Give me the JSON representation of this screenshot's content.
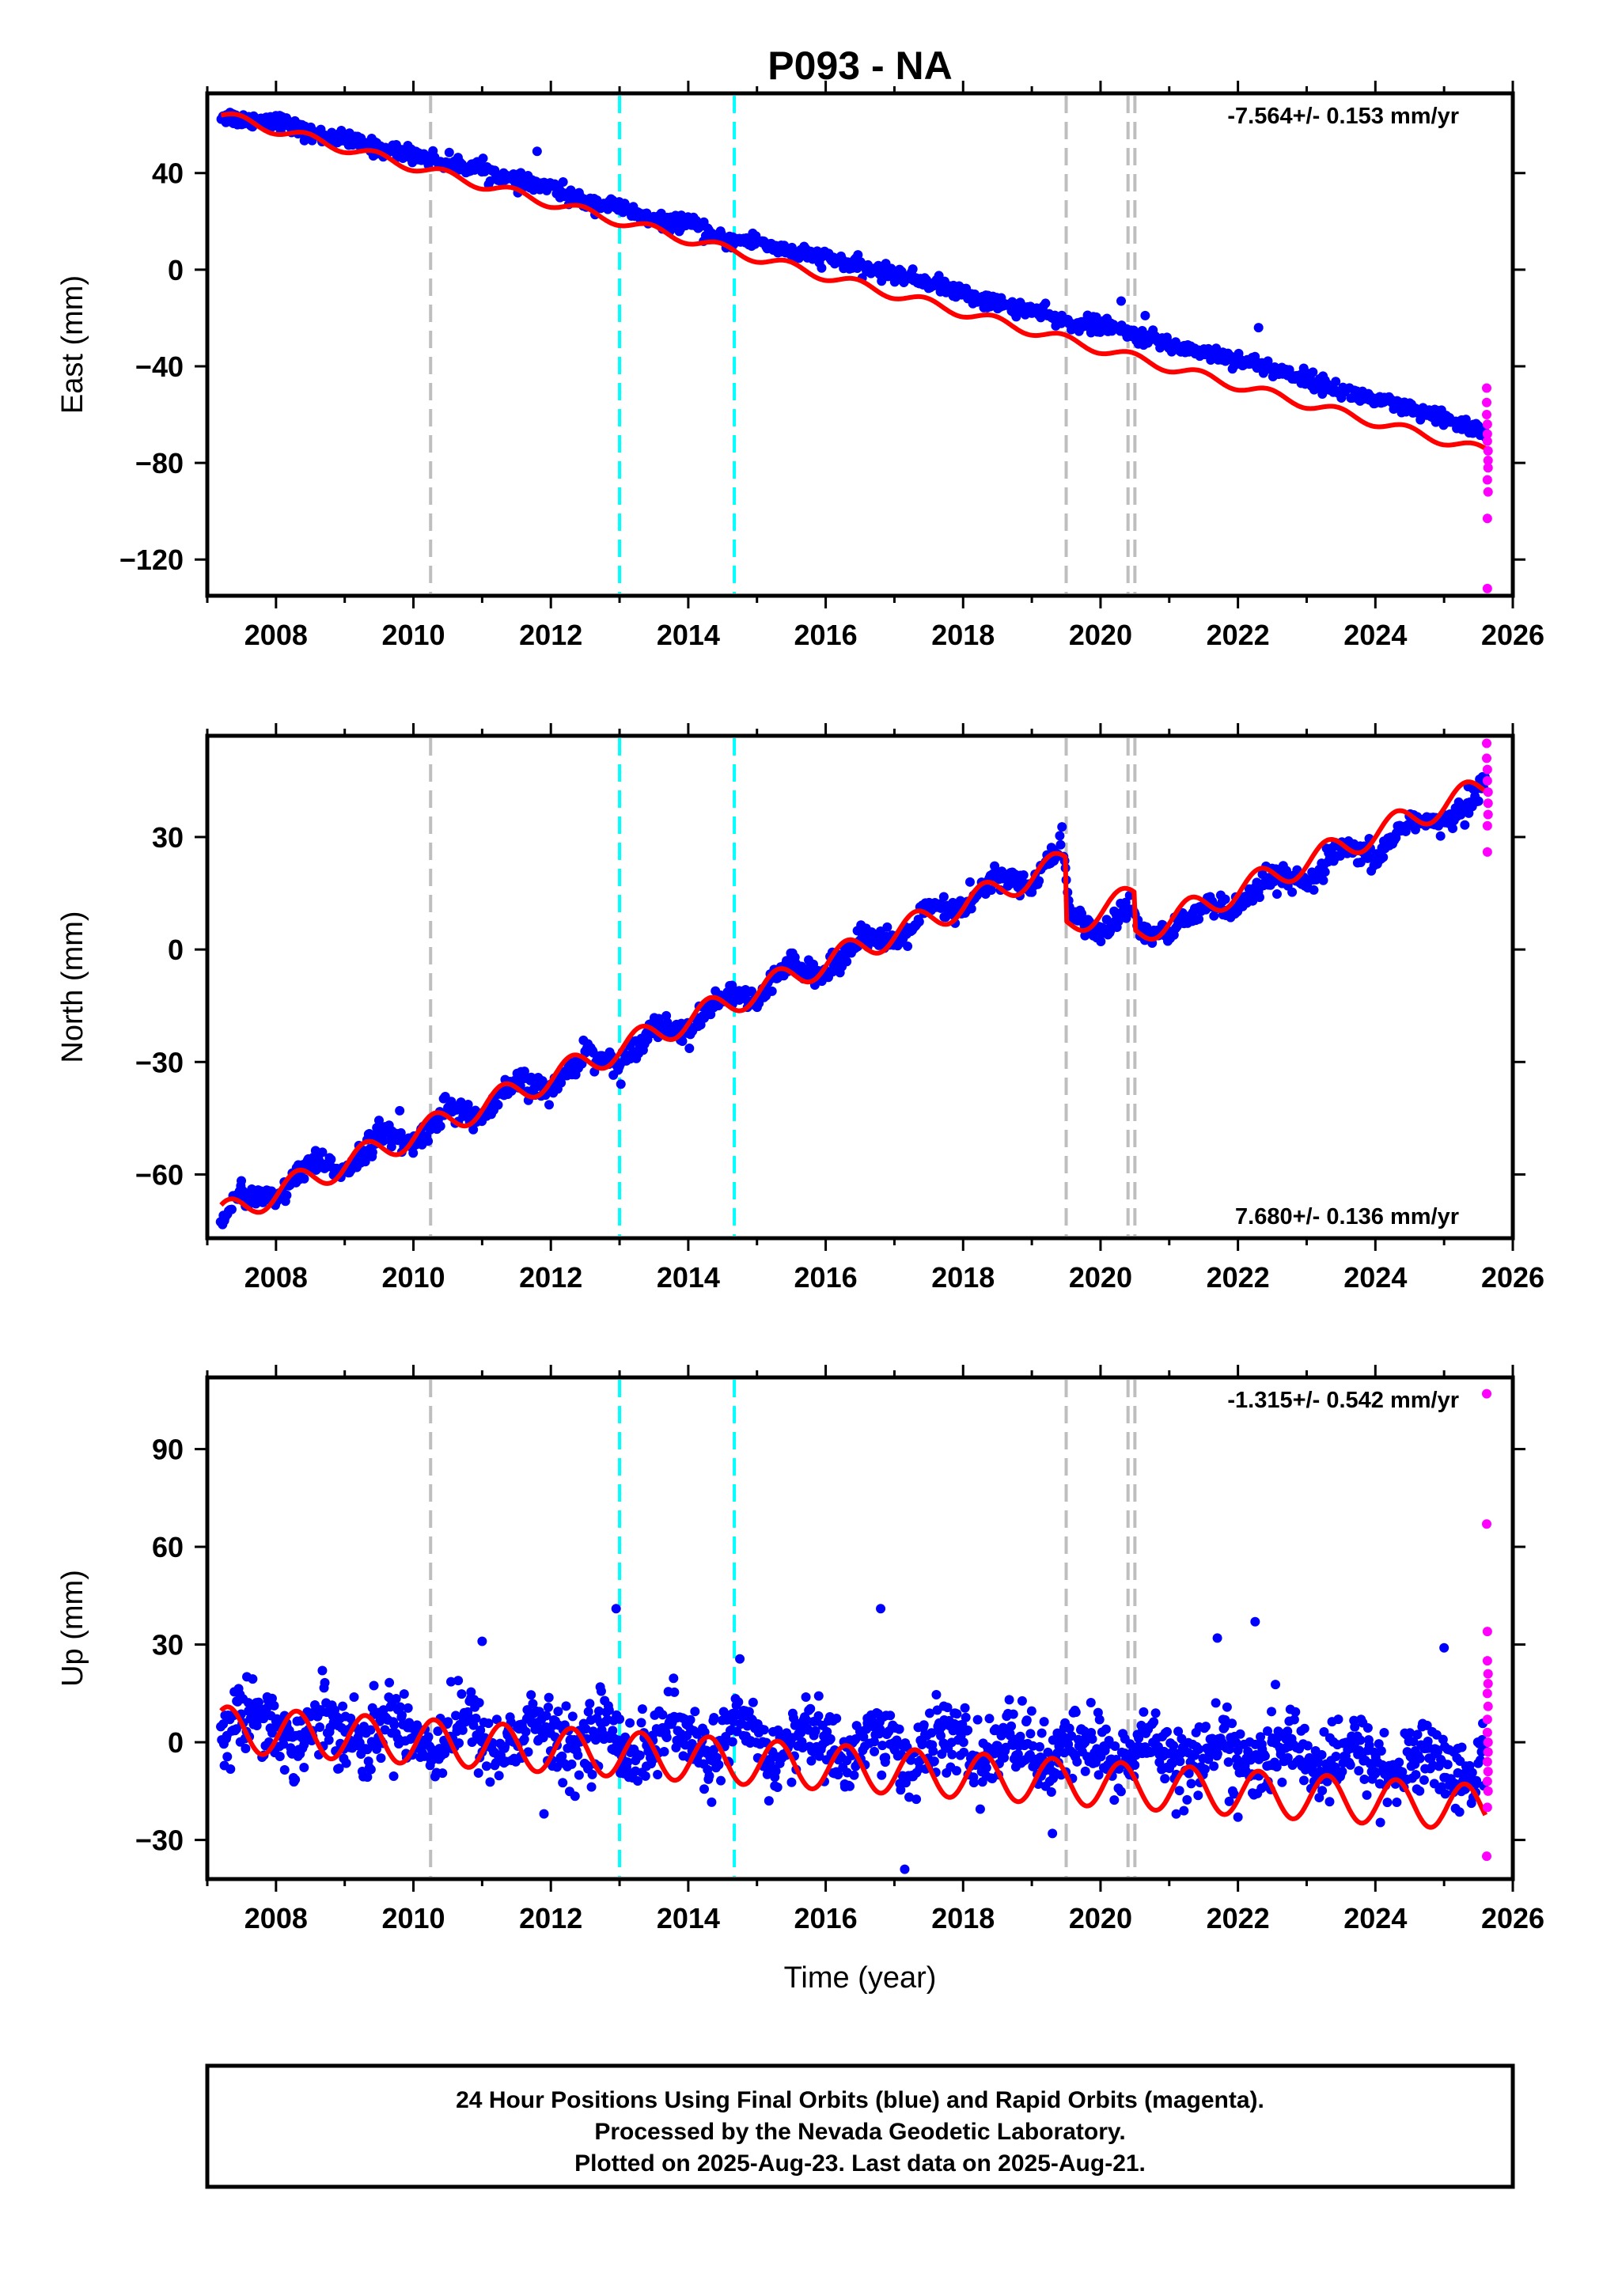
{
  "title": "P093 - NA",
  "xlabel": "Time (year)",
  "footer": {
    "line1": "24 Hour Positions Using Final Orbits (blue) and Rapid Orbits (magenta).",
    "line2": "Processed by the Nevada Geodetic Laboratory.",
    "line3": "Plotted on 2025-Aug-23. Last data on 2025-Aug-21."
  },
  "colors": {
    "final": "#0000ff",
    "rapid": "#ff00ff",
    "model": "#ff0000",
    "event_gray": "#bebebe",
    "event_cyan": "#00ffff"
  },
  "chart_data": [
    {
      "type": "scatter",
      "panel": "east",
      "ylabel": "East (mm)",
      "rate_label": "-7.564+/- 0.153 mm/yr",
      "rate_position": "top-right",
      "xlim": [
        2007.0,
        2026.0
      ],
      "ylim": [
        -135,
        73
      ],
      "xticks": [
        2008,
        2010,
        2012,
        2014,
        2016,
        2018,
        2020,
        2022,
        2024,
        2026
      ],
      "yticks": [
        40,
        0,
        -40,
        -80,
        -120
      ],
      "ytick_labels": [
        "40",
        "0",
        "−40",
        "−80",
        "−120"
      ],
      "events": [
        {
          "x": 2010.25,
          "color": "gray"
        },
        {
          "x": 2013.0,
          "color": "cyan"
        },
        {
          "x": 2014.67,
          "color": "cyan"
        },
        {
          "x": 2019.5,
          "color": "gray"
        },
        {
          "x": 2020.4,
          "color": "gray"
        },
        {
          "x": 2020.5,
          "color": "gray"
        }
      ],
      "series": [
        {
          "role": "final",
          "x": [
            2007.2,
            2007.5,
            2008.0,
            2008.5,
            2009.0,
            2009.5,
            2010.0,
            2010.5,
            2011.0,
            2011.5,
            2012.0,
            2012.5,
            2013.0,
            2013.5,
            2014.0,
            2014.5,
            2015.0,
            2015.5,
            2016.0,
            2016.5,
            2017.0,
            2017.5,
            2018.0,
            2018.5,
            2019.0,
            2019.5,
            2020.0,
            2020.5,
            2021.0,
            2021.5,
            2022.0,
            2022.5,
            2023.0,
            2023.5,
            2024.0,
            2024.5,
            2025.0,
            2025.5,
            2025.6
          ],
          "y": [
            64,
            62,
            62,
            56,
            54,
            50,
            48,
            44,
            42,
            36,
            34,
            28,
            26,
            20,
            19,
            12,
            12,
            7,
            5,
            1,
            -2,
            -5,
            -10,
            -14,
            -17,
            -22,
            -23,
            -27,
            -31,
            -34,
            -37,
            -41,
            -45,
            -50,
            -54,
            -58,
            -62,
            -66,
            -69
          ],
          "outliers": [
            {
              "x": 2011.8,
              "y": 49
            },
            {
              "x": 2020.3,
              "y": -13
            },
            {
              "x": 2020.65,
              "y": -19
            },
            {
              "x": 2022.3,
              "y": -24
            },
            {
              "x": 2024.9,
              "y": -60
            }
          ]
        },
        {
          "role": "rapid",
          "points": [
            {
              "x": 2025.62,
              "y": -49
            },
            {
              "x": 2025.62,
              "y": -55
            },
            {
              "x": 2025.62,
              "y": -60
            },
            {
              "x": 2025.63,
              "y": -64
            },
            {
              "x": 2025.63,
              "y": -68
            },
            {
              "x": 2025.63,
              "y": -71
            },
            {
              "x": 2025.64,
              "y": -75
            },
            {
              "x": 2025.64,
              "y": -79
            },
            {
              "x": 2025.64,
              "y": -82
            },
            {
              "x": 2025.63,
              "y": -87
            },
            {
              "x": 2025.64,
              "y": -92
            },
            {
              "x": 2025.63,
              "y": -103
            },
            {
              "x": 2025.63,
              "y": -132
            }
          ]
        },
        {
          "role": "model",
          "trend": {
            "x0": 2007.2,
            "y0": 64.0,
            "rate": -7.564
          },
          "seasonal": {
            "amplitude": 2.0,
            "phase": 0.2
          },
          "offsets": []
        }
      ]
    },
    {
      "type": "scatter",
      "panel": "north",
      "ylabel": "North (mm)",
      "rate_label": "7.680+/- 0.136 mm/yr",
      "rate_position": "bottom-right",
      "xlim": [
        2007.0,
        2026.0
      ],
      "ylim": [
        -77,
        57
      ],
      "xticks": [
        2008,
        2010,
        2012,
        2014,
        2016,
        2018,
        2020,
        2022,
        2024,
        2026
      ],
      "yticks": [
        30,
        0,
        -30,
        -60
      ],
      "ytick_labels": [
        "30",
        "0",
        "−30",
        "−60"
      ],
      "events": [
        {
          "x": 2010.25,
          "color": "gray"
        },
        {
          "x": 2013.0,
          "color": "cyan"
        },
        {
          "x": 2014.67,
          "color": "cyan"
        },
        {
          "x": 2019.5,
          "color": "gray"
        },
        {
          "x": 2020.4,
          "color": "gray"
        },
        {
          "x": 2020.5,
          "color": "gray"
        }
      ],
      "series": [
        {
          "role": "final",
          "x": [
            2007.2,
            2007.5,
            2008.0,
            2008.5,
            2009.0,
            2009.5,
            2010.0,
            2010.5,
            2011.0,
            2011.5,
            2012.0,
            2012.5,
            2013.0,
            2013.5,
            2014.0,
            2014.5,
            2015.0,
            2015.5,
            2016.0,
            2016.5,
            2017.0,
            2017.5,
            2018.0,
            2018.5,
            2019.0,
            2019.45,
            2019.55,
            2020.0,
            2020.45,
            2020.55,
            2021.0,
            2021.5,
            2022.0,
            2022.5,
            2023.0,
            2023.5,
            2024.0,
            2024.5,
            2025.0,
            2025.6
          ],
          "y": [
            -72,
            -65,
            -67,
            -57,
            -59,
            -49,
            -52,
            -42,
            -45,
            -35,
            -38,
            -27,
            -31,
            -20,
            -22,
            -12,
            -14,
            -3,
            -7,
            4,
            1,
            11,
            10,
            20,
            17,
            29,
            10,
            4,
            12,
            5,
            4,
            12,
            10,
            20,
            17,
            27,
            24,
            35,
            33,
            44
          ],
          "outliers": [
            {
              "x": 2009.8,
              "y": -43
            },
            {
              "x": 2013.6,
              "y": -20
            },
            {
              "x": 2018.1,
              "y": 18
            }
          ]
        },
        {
          "role": "rapid",
          "points": [
            {
              "x": 2025.62,
              "y": 55
            },
            {
              "x": 2025.62,
              "y": 51
            },
            {
              "x": 2025.63,
              "y": 48
            },
            {
              "x": 2025.63,
              "y": 45
            },
            {
              "x": 2025.64,
              "y": 42
            },
            {
              "x": 2025.64,
              "y": 39
            },
            {
              "x": 2025.64,
              "y": 36
            },
            {
              "x": 2025.63,
              "y": 33
            },
            {
              "x": 2025.63,
              "y": 26
            }
          ]
        },
        {
          "role": "model",
          "trend": {
            "x0": 2007.2,
            "y0": -71.0,
            "rate": 7.68
          },
          "seasonal": {
            "amplitude": 3.5,
            "phase": 0.05
          },
          "offsets": [
            {
              "x": 2019.5,
              "dy": -17
            },
            {
              "x": 2020.5,
              "dy": -10
            }
          ]
        }
      ]
    },
    {
      "type": "scatter",
      "panel": "up",
      "ylabel": "Up (mm)",
      "rate_label": "-1.315+/- 0.542 mm/yr",
      "rate_position": "top-right",
      "xlim": [
        2007.0,
        2026.0
      ],
      "ylim": [
        -42,
        112
      ],
      "xticks": [
        2008,
        2010,
        2012,
        2014,
        2016,
        2018,
        2020,
        2022,
        2024,
        2026
      ],
      "yticks": [
        90,
        60,
        30,
        0,
        -30
      ],
      "ytick_labels": [
        "90",
        "60",
        "30",
        "0",
        "−30"
      ],
      "events": [
        {
          "x": 2010.25,
          "color": "gray"
        },
        {
          "x": 2013.0,
          "color": "cyan"
        },
        {
          "x": 2014.67,
          "color": "cyan"
        },
        {
          "x": 2019.5,
          "color": "gray"
        },
        {
          "x": 2020.4,
          "color": "gray"
        },
        {
          "x": 2020.5,
          "color": "gray"
        }
      ],
      "series": [
        {
          "role": "final",
          "x": [
            2007.2,
            2007.75,
            2008.25,
            2008.75,
            2009.25,
            2009.75,
            2010.25,
            2010.75,
            2011.25,
            2011.75,
            2012.25,
            2012.75,
            2013.25,
            2013.75,
            2014.25,
            2014.75,
            2015.25,
            2015.75,
            2016.25,
            2016.75,
            2017.25,
            2017.75,
            2018.25,
            2018.75,
            2019.25,
            2019.75,
            2020.25,
            2020.75,
            2021.25,
            2021.75,
            2022.25,
            2022.75,
            2023.25,
            2023.75,
            2024.25,
            2024.75,
            2025.25,
            2025.6
          ],
          "y": [
            3,
            11,
            -2,
            10,
            -2,
            9,
            -3,
            8,
            -4,
            7,
            -4,
            6,
            -5,
            6,
            -5,
            6,
            -6,
            5,
            -6,
            4,
            -7,
            4,
            -7,
            3,
            -8,
            2,
            -8,
            2,
            -8,
            1,
            -9,
            1,
            -10,
            -1,
            -11,
            -2,
            -12,
            -5
          ],
          "outliers": [
            {
              "x": 2011.0,
              "y": 31
            },
            {
              "x": 2011.9,
              "y": -22
            },
            {
              "x": 2012.95,
              "y": 41
            },
            {
              "x": 2016.8,
              "y": 41
            },
            {
              "x": 2017.15,
              "y": -39
            },
            {
              "x": 2019.3,
              "y": -28
            },
            {
              "x": 2021.7,
              "y": 32
            },
            {
              "x": 2022.25,
              "y": 37
            },
            {
              "x": 2022.0,
              "y": -23
            },
            {
              "x": 2025.0,
              "y": 29
            }
          ]
        },
        {
          "role": "rapid",
          "points": [
            {
              "x": 2025.62,
              "y": 107
            },
            {
              "x": 2025.62,
              "y": 67
            },
            {
              "x": 2025.63,
              "y": 34
            },
            {
              "x": 2025.63,
              "y": 25
            },
            {
              "x": 2025.64,
              "y": 21
            },
            {
              "x": 2025.64,
              "y": 18
            },
            {
              "x": 2025.63,
              "y": 15
            },
            {
              "x": 2025.64,
              "y": 11
            },
            {
              "x": 2025.63,
              "y": 7
            },
            {
              "x": 2025.63,
              "y": 3
            },
            {
              "x": 2025.64,
              "y": 0
            },
            {
              "x": 2025.64,
              "y": -3
            },
            {
              "x": 2025.63,
              "y": -6
            },
            {
              "x": 2025.64,
              "y": -9
            },
            {
              "x": 2025.63,
              "y": -12
            },
            {
              "x": 2025.64,
              "y": -15
            },
            {
              "x": 2025.63,
              "y": -20
            },
            {
              "x": 2025.62,
              "y": -35
            }
          ]
        },
        {
          "role": "model",
          "trend": {
            "x0": 2007.2,
            "y0": 4.0,
            "rate": -1.315
          },
          "seasonal": {
            "amplitude": 7.0,
            "phase": 0.05
          },
          "offsets": []
        }
      ]
    }
  ]
}
